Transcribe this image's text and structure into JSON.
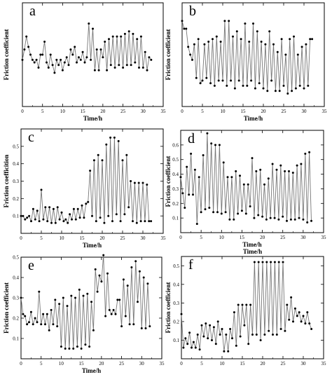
{
  "colors": {
    "line": "#777777",
    "marker": "#000000",
    "axis": "#000000"
  },
  "chart_data": [
    {
      "type": "line",
      "panel": "a",
      "xlabel": "Time/h",
      "ylabel": "Friction coefficient",
      "xlim": [
        0,
        35
      ],
      "ylim": [
        0,
        0.4
      ],
      "xticks": [
        0,
        5,
        10,
        15,
        20,
        25,
        30,
        35
      ],
      "yticks": [],
      "x": [
        0,
        0.5,
        1,
        1.5,
        2,
        2.5,
        3,
        3.5,
        4,
        4.5,
        5,
        5.5,
        6,
        6.5,
        7,
        7.5,
        8,
        8.5,
        9,
        9.5,
        10,
        10.5,
        11,
        11.5,
        12,
        12.5,
        13,
        13.5,
        14,
        14.5,
        15,
        15.5,
        16,
        16.5,
        17,
        17.5,
        18,
        18.5,
        19,
        19.5,
        20,
        20.5,
        21,
        21.5,
        22,
        22.5,
        23,
        23.5,
        24,
        24.5,
        25,
        25.5,
        26,
        26.5,
        27,
        27.5,
        28,
        28.5,
        29,
        29.5,
        30,
        30.5,
        31,
        31.5,
        32
      ],
      "series": [
        {
          "values": [
            0.18,
            0.22,
            0.27,
            0.23,
            0.2,
            0.18,
            0.17,
            0.18,
            0.15,
            0.2,
            0.2,
            0.25,
            0.17,
            0.15,
            0.2,
            0.16,
            0.13,
            0.18,
            0.16,
            0.18,
            0.14,
            0.17,
            0.19,
            0.16,
            0.22,
            0.2,
            0.23,
            0.17,
            0.19,
            0.18,
            0.21,
            0.17,
            0.19,
            0.32,
            0.18,
            0.3,
            0.14,
            0.22,
            0.14,
            0.22,
            0.19,
            0.25,
            0.14,
            0.26,
            0.16,
            0.27,
            0.15,
            0.27,
            0.16,
            0.27,
            0.15,
            0.28,
            0.16,
            0.29,
            0.16,
            0.28,
            0.17,
            0.26,
            0.15,
            0.27,
            0.15,
            0.21,
            0.14,
            0.19,
            0.18
          ]
        }
      ]
    },
    {
      "type": "line",
      "panel": "b",
      "xlabel": "Time/h",
      "ylabel": "Friction coefficient",
      "xlim": [
        0,
        35
      ],
      "ylim": [
        0,
        0.4
      ],
      "xticks": [
        0,
        5,
        10,
        15,
        20,
        25,
        30,
        35
      ],
      "yticks": [],
      "x": [
        0,
        0.5,
        1,
        1.5,
        2,
        2.5,
        3,
        3.5,
        4,
        4.5,
        5,
        5.5,
        6,
        6.5,
        7,
        7.5,
        8,
        8.5,
        9,
        9.5,
        10,
        10.5,
        11,
        11.5,
        12,
        12.5,
        13,
        13.5,
        14,
        14.5,
        15,
        15.5,
        16,
        16.5,
        17,
        17.5,
        18,
        18.5,
        19,
        19.5,
        20,
        20.5,
        21,
        21.5,
        22,
        22.5,
        23,
        23.5,
        24,
        24.5,
        25,
        25.5,
        26,
        26.5,
        27,
        27.5,
        28,
        28.5,
        29,
        29.5,
        30,
        30.5,
        31,
        31.5,
        32
      ],
      "series": [
        {
          "values": [
            0.33,
            0.3,
            0.3,
            0.23,
            0.2,
            0.18,
            0.24,
            0.11,
            0.26,
            0.09,
            0.1,
            0.24,
            0.11,
            0.25,
            0.09,
            0.26,
            0.08,
            0.27,
            0.1,
            0.25,
            0.1,
            0.33,
            0.08,
            0.33,
            0.1,
            0.27,
            0.07,
            0.29,
            0.1,
            0.26,
            0.08,
            0.32,
            0.08,
            0.25,
            0.1,
            0.32,
            0.07,
            0.29,
            0.09,
            0.25,
            0.07,
            0.24,
            0.06,
            0.29,
            0.1,
            0.24,
            0.06,
            0.21,
            0.06,
            0.26,
            0.08,
            0.2,
            0.05,
            0.26,
            0.06,
            0.27,
            0.07,
            0.2,
            0.08,
            0.23,
            0.07,
            0.24,
            0.08,
            0.26,
            0.26
          ]
        }
      ]
    },
    {
      "type": "line",
      "panel": "c",
      "xlabel": "Time/h",
      "ylabel": "Friction coefficition",
      "xlim": [
        0,
        35
      ],
      "ylim": [
        0,
        0.6
      ],
      "xticks": [
        0,
        5,
        10,
        15,
        20,
        25,
        30,
        35
      ],
      "yticks": [
        0.1,
        0.2,
        0.3,
        0.4,
        0.5
      ],
      "x": [
        0,
        0.5,
        1,
        1.5,
        2,
        2.5,
        3,
        3.5,
        4,
        4.5,
        5,
        5.5,
        6,
        6.5,
        7,
        7.5,
        8,
        8.5,
        9,
        9.5,
        10,
        10.5,
        11,
        11.5,
        12,
        12.5,
        13,
        13.5,
        14,
        14.5,
        15,
        15.5,
        16,
        16.5,
        17,
        17.5,
        18,
        18.5,
        19,
        19.5,
        20,
        20.5,
        21,
        21.5,
        22,
        22.5,
        23,
        23.5,
        24,
        24.5,
        25,
        25.5,
        26,
        26.5,
        27,
        27.5,
        28,
        28.5,
        29,
        29.5,
        30,
        30.5,
        31,
        31.5,
        32
      ],
      "series": [
        {
          "values": [
            0.1,
            0.1,
            0.08,
            0.09,
            0.1,
            0.07,
            0.14,
            0.08,
            0.13,
            0.07,
            0.25,
            0.08,
            0.15,
            0.07,
            0.15,
            0.06,
            0.14,
            0.06,
            0.15,
            0.08,
            0.12,
            0.07,
            0.08,
            0.06,
            0.11,
            0.08,
            0.14,
            0.08,
            0.14,
            0.09,
            0.16,
            0.09,
            0.17,
            0.18,
            0.36,
            0.1,
            0.42,
            0.07,
            0.45,
            0.09,
            0.42,
            0.06,
            0.51,
            0.1,
            0.55,
            0.07,
            0.55,
            0.11,
            0.53,
            0.07,
            0.42,
            0.11,
            0.45,
            0.15,
            0.3,
            0.07,
            0.29,
            0.06,
            0.29,
            0.07,
            0.29,
            0.07,
            0.28,
            0.07,
            0.07
          ]
        }
      ]
    },
    {
      "type": "line",
      "panel": "d",
      "xlabel": "Time/h",
      "ylabel": "Friction coefficient",
      "xlim": [
        0,
        35
      ],
      "ylim": [
        0,
        0.7
      ],
      "xticks": [
        0,
        5,
        10,
        15,
        20,
        25,
        30,
        35
      ],
      "yticks": [
        0.1,
        0.2,
        0.3,
        0.4,
        0.5,
        0.6
      ],
      "x": [
        0,
        0.5,
        1,
        1.5,
        2,
        2.5,
        3,
        3.5,
        4,
        4.5,
        5,
        5.5,
        6,
        6.5,
        7,
        7.5,
        8,
        8.5,
        9,
        9.5,
        10,
        10.5,
        11,
        11.5,
        12,
        12.5,
        13,
        13.5,
        14,
        14.5,
        15,
        15.5,
        16,
        16.5,
        17,
        17.5,
        18,
        18.5,
        19,
        19.5,
        20,
        20.5,
        21,
        21.5,
        22,
        22.5,
        23,
        23.5,
        24,
        24.5,
        25,
        25.5,
        26,
        26.5,
        27,
        27.5,
        28,
        28.5,
        29,
        29.5,
        30,
        30.5,
        31,
        31.5,
        32
      ],
      "series": [
        {
          "values": [
            0.38,
            0.27,
            0.17,
            0.45,
            0.26,
            0.54,
            0.26,
            0.43,
            0.06,
            0.38,
            0.14,
            0.53,
            0.16,
            0.68,
            0.17,
            0.61,
            0.14,
            0.6,
            0.14,
            0.6,
            0.13,
            0.48,
            0.14,
            0.38,
            0.09,
            0.38,
            0.09,
            0.42,
            0.13,
            0.39,
            0.15,
            0.33,
            0.13,
            0.33,
            0.18,
            0.51,
            0.1,
            0.42,
            0.12,
            0.43,
            0.11,
            0.33,
            0.09,
            0.37,
            0.1,
            0.47,
            0.1,
            0.43,
            0.09,
            0.46,
            0.11,
            0.42,
            0.08,
            0.42,
            0.09,
            0.41,
            0.09,
            0.46,
            0.1,
            0.47,
            0.09,
            0.54,
            0.07,
            0.55,
            0.08
          ]
        }
      ]
    },
    {
      "type": "line",
      "panel": "e",
      "xlabel": "Time/h",
      "ylabel": "Friction coefficient",
      "xlim": [
        0,
        35
      ],
      "ylim": [
        0,
        0.5
      ],
      "xticks": [
        0,
        5,
        10,
        15,
        20,
        25,
        30,
        35
      ],
      "yticks": [
        0.1,
        0.2,
        0.3,
        0.4,
        0.5
      ],
      "x": [
        0,
        0.5,
        1,
        1.5,
        2,
        2.5,
        3,
        3.5,
        4,
        4.5,
        5,
        5.5,
        6,
        6.5,
        7,
        7.5,
        8,
        8.5,
        9,
        9.5,
        10,
        10.5,
        11,
        11.5,
        12,
        12.5,
        13,
        13.5,
        14,
        14.5,
        15,
        15.5,
        16,
        16.5,
        17,
        17.5,
        18,
        18.5,
        19,
        19.5,
        20,
        20.5,
        21,
        21.5,
        22,
        22.5,
        23,
        23.5,
        24,
        24.5,
        25,
        25.5,
        26,
        26.5,
        27,
        27.5,
        28,
        28.5,
        29,
        29.5,
        30,
        30.5,
        31,
        31.5,
        32
      ],
      "series": [
        {
          "values": [
            0.3,
            0.22,
            0.21,
            0.17,
            0.18,
            0.23,
            0.17,
            0.2,
            0.18,
            0.33,
            0.17,
            0.22,
            0.17,
            0.22,
            0.14,
            0.24,
            0.17,
            0.29,
            0.16,
            0.27,
            0.06,
            0.3,
            0.05,
            0.26,
            0.05,
            0.31,
            0.05,
            0.3,
            0.06,
            0.34,
            0.05,
            0.31,
            0.07,
            0.32,
            0.06,
            0.28,
            0.14,
            0.44,
            0.33,
            0.41,
            0.38,
            0.51,
            0.21,
            0.42,
            0.24,
            0.22,
            0.24,
            0.22,
            0.29,
            0.29,
            0.16,
            0.39,
            0.21,
            0.36,
            0.17,
            0.45,
            0.17,
            0.48,
            0.28,
            0.43,
            0.15,
            0.4,
            0.15,
            0.37,
            0.16
          ]
        }
      ]
    },
    {
      "type": "line",
      "panel": "f",
      "xlabel": "Time/h",
      "ylabel": "Friction coefficient",
      "xlim": [
        0,
        35
      ],
      "ylim": [
        0,
        0.55
      ],
      "xticks": [
        0,
        5,
        10,
        15,
        20,
        25,
        30,
        35
      ],
      "yticks": [
        0.1,
        0.2,
        0.3,
        0.4,
        0.5
      ],
      "x": [
        0,
        0.5,
        1,
        1.5,
        2,
        2.5,
        3,
        3.5,
        4,
        4.5,
        5,
        5.5,
        6,
        6.5,
        7,
        7.5,
        8,
        8.5,
        9,
        9.5,
        10,
        10.5,
        11,
        11.5,
        12,
        12.5,
        13,
        13.5,
        14,
        14.5,
        15,
        15.5,
        16,
        16.5,
        17,
        17.5,
        18,
        18.5,
        19,
        19.5,
        20,
        20.5,
        21,
        21.5,
        22,
        22.5,
        23,
        23.5,
        24,
        24.5,
        25,
        25.5,
        26,
        26.5,
        27,
        27.5,
        28,
        28.5,
        29,
        29.5,
        30,
        30.5,
        31,
        31.5,
        32
      ],
      "series": [
        {
          "values": [
            0.24,
            0.06,
            0.11,
            0.08,
            0.14,
            0.06,
            0.09,
            0.06,
            0.13,
            0.05,
            0.18,
            0.12,
            0.19,
            0.11,
            0.18,
            0.1,
            0.17,
            0.08,
            0.2,
            0.13,
            0.16,
            0.04,
            0.13,
            0.04,
            0.16,
            0.11,
            0.25,
            0.07,
            0.29,
            0.12,
            0.29,
            0.18,
            0.29,
            0.08,
            0.29,
            0.13,
            0.52,
            0.13,
            0.52,
            0.1,
            0.52,
            0.13,
            0.52,
            0.15,
            0.52,
            0.13,
            0.52,
            0.13,
            0.52,
            0.16,
            0.52,
            0.15,
            0.29,
            0.21,
            0.33,
            0.2,
            0.27,
            0.23,
            0.25,
            0.2,
            0.23,
            0.19,
            0.25,
            0.19,
            0.16
          ]
        }
      ]
    }
  ]
}
